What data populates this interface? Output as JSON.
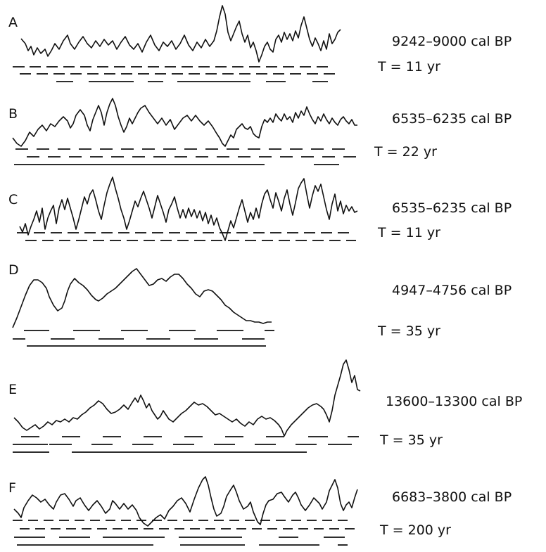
{
  "panels": [
    {
      "letter": "A",
      "range": "9242–9000  cal BP",
      "period": "T = 11 yr"
    },
    {
      "letter": "B",
      "range": "6535–6235  cal BP",
      "period": "T = 22 yr"
    },
    {
      "letter": "C",
      "range": "6535–6235  cal BP",
      "period": "T = 11 yr"
    },
    {
      "letter": "D",
      "range": "4947–4756  cal BP",
      "period": "T = 35 yr"
    },
    {
      "letter": "E",
      "range": "13600–13300  cal BP",
      "period": "T = 35 yr"
    },
    {
      "letter": "F",
      "range": "6683–3800  cal BP",
      "period": "T = 200 yr"
    }
  ]
}
